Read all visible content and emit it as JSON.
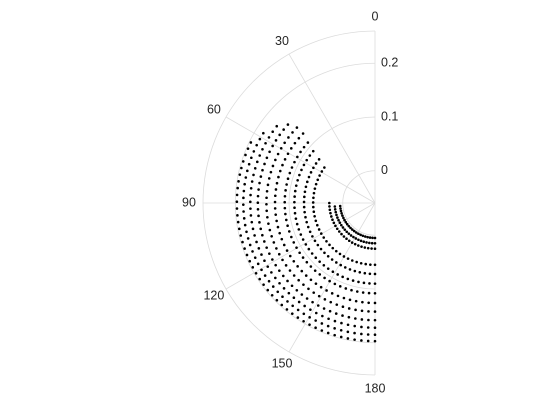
{
  "chart_data": {
    "type": "scatter",
    "coordinate_system": "polar",
    "title": "",
    "theta_unit": "degrees",
    "theta_zero_location": "top",
    "theta_direction": "counterclockwise",
    "theta_limits": [
      0,
      180
    ],
    "theta_ticks": [
      "0",
      "30",
      "60",
      "90",
      "120",
      "150",
      "180"
    ],
    "r_limits": [
      -0.06,
      0.26
    ],
    "r_ticks": [
      "0",
      "0.1",
      "0.2"
    ],
    "grid": true,
    "legend": "none",
    "marker_color": "#000000",
    "grid_color": "#dcdcdc",
    "series": [
      {
        "rings": [
          {
            "r": 0.005,
            "theta_start": 95,
            "theta_end": 180,
            "points": 22
          },
          {
            "r": 0.015,
            "theta_start": 95,
            "theta_end": 180,
            "points": 22
          },
          {
            "r": 0.025,
            "theta_start": 90,
            "theta_end": 180,
            "points": 22
          },
          {
            "r": 0.055,
            "theta_start": 55,
            "theta_end": 180,
            "points": 30
          },
          {
            "r": 0.072,
            "theta_start": 52,
            "theta_end": 180,
            "points": 32
          },
          {
            "r": 0.09,
            "theta_start": 50,
            "theta_end": 180,
            "points": 34
          },
          {
            "r": 0.108,
            "theta_start": 48,
            "theta_end": 180,
            "points": 36
          },
          {
            "r": 0.126,
            "theta_start": 46,
            "theta_end": 180,
            "points": 38
          },
          {
            "r": 0.142,
            "theta_start": 46,
            "theta_end": 180,
            "points": 40
          },
          {
            "r": 0.158,
            "theta_start": 48,
            "theta_end": 180,
            "points": 42
          },
          {
            "r": 0.172,
            "theta_start": 52,
            "theta_end": 180,
            "points": 42
          },
          {
            "r": 0.185,
            "theta_start": 58,
            "theta_end": 180,
            "points": 42
          },
          {
            "r": 0.197,
            "theta_start": 64,
            "theta_end": 180,
            "points": 42
          }
        ]
      }
    ]
  }
}
